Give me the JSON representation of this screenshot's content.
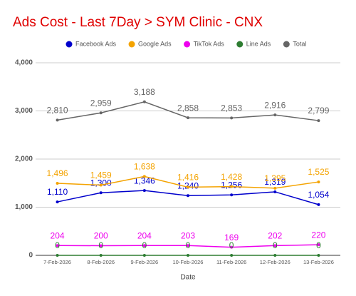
{
  "chart_data": {
    "type": "line",
    "title": "Ads Cost - Last 7Day > SYM Clinic - CNX",
    "xlabel": "Date",
    "categories": [
      "7-Feb-2026",
      "8-Feb-2026",
      "9-Feb-2026",
      "10-Feb-2026",
      "11-Feb-2026",
      "12-Feb-2026",
      "13-Feb-2026"
    ],
    "series": [
      {
        "name": "Facebook Ads",
        "color": "#0000cc",
        "values": [
          1110,
          1300,
          1346,
          1240,
          1256,
          1319,
          1054
        ],
        "value_labels": [
          "1,110",
          "1,300",
          "1,346",
          "1,240",
          "1,256",
          "1,319",
          "1,054"
        ]
      },
      {
        "name": "Google Ads",
        "color": "#f4a300",
        "values": [
          1496,
          1459,
          1638,
          1416,
          1428,
          1395,
          1525
        ],
        "value_labels": [
          "1,496",
          "1,459",
          "1,638",
          "1,416",
          "1,428",
          "1,395",
          "1,525"
        ]
      },
      {
        "name": "TikTok Ads",
        "color": "#ee00ee",
        "values": [
          204,
          200,
          204,
          203,
          169,
          202,
          220
        ]
      },
      {
        "name": "Line Ads",
        "color": "#2e7d32",
        "values": [
          0,
          0,
          0,
          0,
          0,
          0,
          0
        ]
      },
      {
        "name": "Total",
        "color": "#666666",
        "values": [
          2810,
          2959,
          3188,
          2858,
          2853,
          2916,
          2799
        ],
        "value_labels": [
          "2,810",
          "2,959",
          "3,188",
          "2,858",
          "2,853",
          "2,916",
          "2,799"
        ]
      }
    ],
    "ylim": [
      0,
      4000
    ],
    "yticks": [
      0,
      {
        "value": 1000,
        "label": "1,000"
      },
      {
        "value": 2000,
        "label": "2,000"
      },
      {
        "value": 3000,
        "label": "3,000"
      },
      {
        "value": 4000,
        "label": "4,000"
      }
    ],
    "grid": true,
    "legend": "top"
  }
}
